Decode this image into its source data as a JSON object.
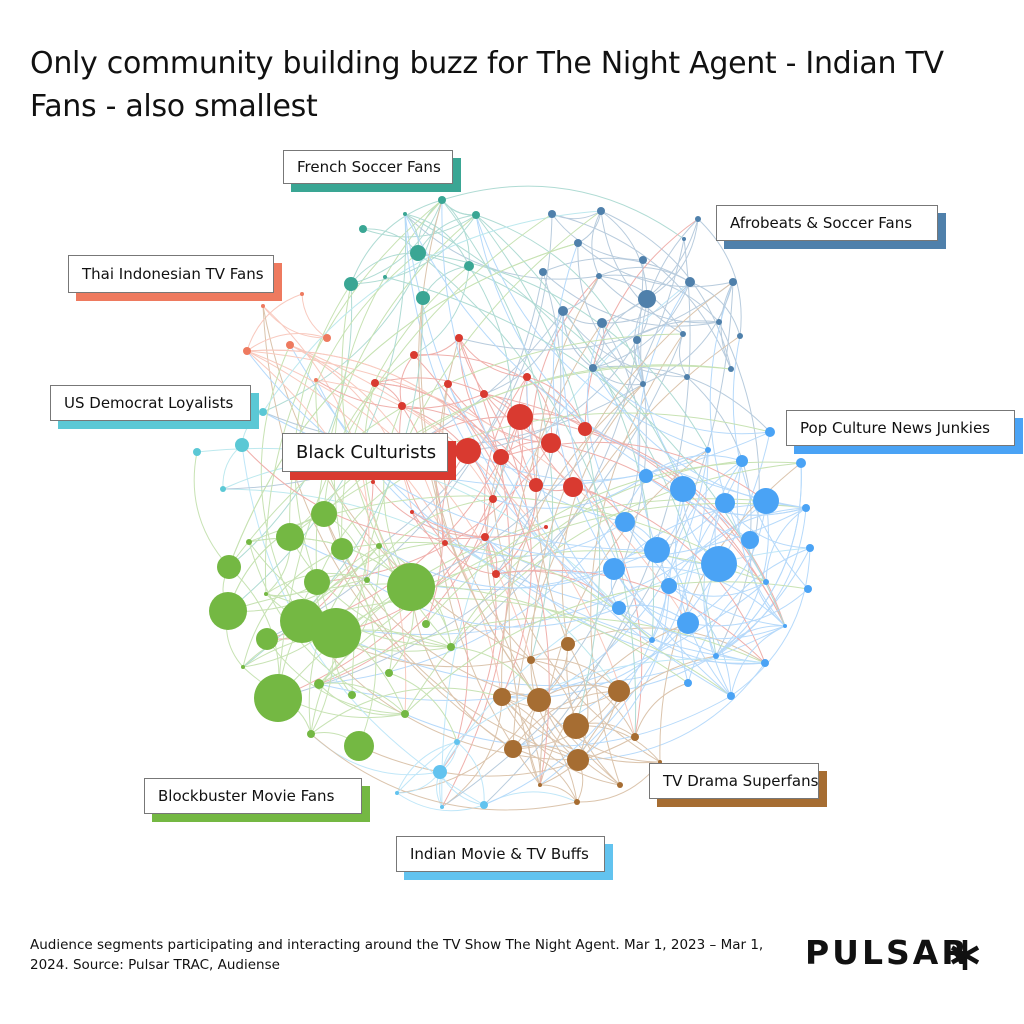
{
  "header": {
    "title": "Only community building buzz for The Night Agent - Indian TV Fans - also smallest"
  },
  "communities": [
    {
      "name": "French Soccer Fans",
      "color": "#3aa694"
    },
    {
      "name": "Afrobeats & Soccer Fans",
      "color": "#4f80ab"
    },
    {
      "name": "Thai Indonesian TV Fans",
      "color": "#ee7a5f"
    },
    {
      "name": "US Democrat Loyalists",
      "color": "#5bc8d5"
    },
    {
      "name": "Black Culturists",
      "color": "#d93a30"
    },
    {
      "name": "Pop Culture News Junkies",
      "color": "#4aa3f5"
    },
    {
      "name": "Blockbuster Movie Fans",
      "color": "#74b843"
    },
    {
      "name": "TV Drama Superfans",
      "color": "#a66d32"
    },
    {
      "name": "Indian Movie & TV Buffs",
      "color": "#62c3ef"
    }
  ],
  "footer": {
    "note": "Audience segments participating and interacting around the TV Show The Night Agent. Mar 1, 2023 – Mar 1, 2024. Source: Pulsar TRAC, Audiense",
    "logo": "PULSAR"
  }
}
